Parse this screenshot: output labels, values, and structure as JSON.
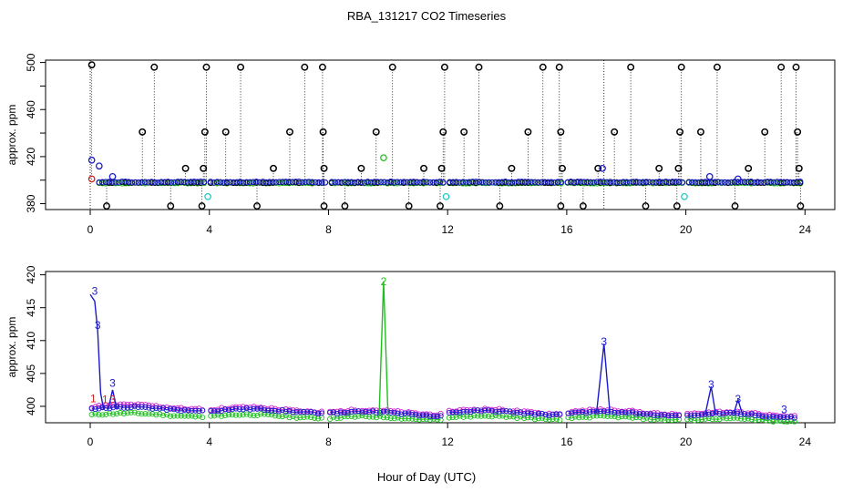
{
  "title": "RBA_131217  CO2 Timeseries",
  "xlabel": "Hour of Day (UTC)",
  "colors": {
    "black": "#000000",
    "red": "#d42020",
    "green": "#1fbf1f",
    "blue": "#1a1acc",
    "cyan": "#20c8c8",
    "magenta": "#cc20cc"
  },
  "chart_data": [
    {
      "type": "scatter",
      "name": "top-panel",
      "ylabel": "approx. ppm",
      "xlim": [
        -1.5,
        25
      ],
      "ylim": [
        375,
        502
      ],
      "xticks": [
        0,
        4,
        8,
        12,
        16,
        20,
        24
      ],
      "yticks": [
        380,
        420,
        460,
        500
      ],
      "yticks_minor": [
        400,
        440,
        480
      ],
      "gaps": [
        [
          3.9,
          4.0
        ],
        [
          7.9,
          8.1
        ],
        [
          11.9,
          12.0
        ],
        [
          15.9,
          16.0
        ],
        [
          19.9,
          20.0
        ]
      ],
      "baseline": 398,
      "spikes_high": [
        {
          "x": 0.05,
          "y": 498
        },
        {
          "x": 1.75,
          "y": 441
        },
        {
          "x": 2.15,
          "y": 496
        },
        {
          "x": 3.2,
          "y": 410
        },
        {
          "x": 3.8,
          "y": 410
        },
        {
          "x": 3.85,
          "y": 441
        },
        {
          "x": 3.9,
          "y": 496
        },
        {
          "x": 4.55,
          "y": 441
        },
        {
          "x": 5.05,
          "y": 496
        },
        {
          "x": 6.15,
          "y": 410
        },
        {
          "x": 6.7,
          "y": 441
        },
        {
          "x": 7.2,
          "y": 496
        },
        {
          "x": 7.8,
          "y": 496
        },
        {
          "x": 7.82,
          "y": 441
        },
        {
          "x": 7.85,
          "y": 410
        },
        {
          "x": 9.1,
          "y": 410
        },
        {
          "x": 9.6,
          "y": 441
        },
        {
          "x": 10.15,
          "y": 496
        },
        {
          "x": 11.2,
          "y": 410
        },
        {
          "x": 11.8,
          "y": 410
        },
        {
          "x": 11.85,
          "y": 441
        },
        {
          "x": 11.9,
          "y": 496
        },
        {
          "x": 12.55,
          "y": 441
        },
        {
          "x": 13.05,
          "y": 496
        },
        {
          "x": 14.15,
          "y": 410
        },
        {
          "x": 14.7,
          "y": 441
        },
        {
          "x": 15.2,
          "y": 496
        },
        {
          "x": 15.75,
          "y": 496
        },
        {
          "x": 15.8,
          "y": 441
        },
        {
          "x": 15.85,
          "y": 410
        },
        {
          "x": 17.05,
          "y": 410
        },
        {
          "x": 17.6,
          "y": 441
        },
        {
          "x": 18.15,
          "y": 496
        },
        {
          "x": 19.1,
          "y": 410
        },
        {
          "x": 19.75,
          "y": 410
        },
        {
          "x": 19.8,
          "y": 441
        },
        {
          "x": 19.85,
          "y": 496
        },
        {
          "x": 20.5,
          "y": 441
        },
        {
          "x": 21.05,
          "y": 496
        },
        {
          "x": 22.1,
          "y": 410
        },
        {
          "x": 22.65,
          "y": 441
        },
        {
          "x": 23.2,
          "y": 496
        },
        {
          "x": 23.7,
          "y": 496
        },
        {
          "x": 23.75,
          "y": 441
        },
        {
          "x": 23.8,
          "y": 410
        }
      ],
      "spikes_low": [
        {
          "x": 0.55,
          "y": 378
        },
        {
          "x": 2.7,
          "y": 378
        },
        {
          "x": 3.75,
          "y": 378
        },
        {
          "x": 5.6,
          "y": 378
        },
        {
          "x": 7.85,
          "y": 378
        },
        {
          "x": 8.55,
          "y": 378
        },
        {
          "x": 10.7,
          "y": 378
        },
        {
          "x": 11.75,
          "y": 378
        },
        {
          "x": 13.75,
          "y": 378
        },
        {
          "x": 15.8,
          "y": 378
        },
        {
          "x": 16.55,
          "y": 378
        },
        {
          "x": 18.65,
          "y": 378
        },
        {
          "x": 19.7,
          "y": 378
        },
        {
          "x": 21.65,
          "y": 378
        },
        {
          "x": 23.85,
          "y": 378
        }
      ],
      "outliers": [
        {
          "x": 0.05,
          "y": 417,
          "color": "blue"
        },
        {
          "x": 0.3,
          "y": 412,
          "color": "blue"
        },
        {
          "x": 0.75,
          "y": 403,
          "color": "blue"
        },
        {
          "x": 17.2,
          "y": 410,
          "color": "blue"
        },
        {
          "x": 20.8,
          "y": 403,
          "color": "blue"
        },
        {
          "x": 21.75,
          "y": 401,
          "color": "blue"
        },
        {
          "x": 9.85,
          "y": 419,
          "color": "green"
        },
        {
          "x": 0.05,
          "y": 401,
          "color": "red"
        },
        {
          "x": 3.95,
          "y": 386,
          "color": "cyan"
        },
        {
          "x": 11.95,
          "y": 386,
          "color": "cyan"
        },
        {
          "x": 19.95,
          "y": 386,
          "color": "cyan"
        }
      ]
    },
    {
      "type": "line",
      "name": "bottom-panel",
      "ylabel": "approx. ppm",
      "xlim": [
        -1.5,
        25
      ],
      "ylim": [
        397.5,
        420.5
      ],
      "xticks": [
        0,
        4,
        8,
        12,
        16,
        20,
        24
      ],
      "yticks": [
        400,
        405,
        410,
        415,
        420
      ],
      "labels": [
        {
          "x": 0.15,
          "y": 417.5,
          "text": "3",
          "color": "blue"
        },
        {
          "x": 0.25,
          "y": 412.3,
          "text": "3",
          "color": "blue"
        },
        {
          "x": 0.75,
          "y": 403.5,
          "text": "3",
          "color": "blue"
        },
        {
          "x": 0.1,
          "y": 401.2,
          "text": "1",
          "color": "red"
        },
        {
          "x": 0.5,
          "y": 401.0,
          "text": "1",
          "color": "red"
        },
        {
          "x": 0.75,
          "y": 401.0,
          "text": "3",
          "color": "red"
        },
        {
          "x": 9.85,
          "y": 419.0,
          "text": "2",
          "color": "green"
        },
        {
          "x": 17.25,
          "y": 409.8,
          "text": "3",
          "color": "blue"
        },
        {
          "x": 20.85,
          "y": 403.3,
          "text": "3",
          "color": "blue"
        },
        {
          "x": 21.75,
          "y": 401.1,
          "text": "3",
          "color": "blue"
        },
        {
          "x": 23.3,
          "y": 399.5,
          "text": "3",
          "color": "blue"
        }
      ],
      "spikes": [
        {
          "color": "blue",
          "points": [
            [
              0.0,
              417.0
            ],
            [
              0.15,
              416.0
            ],
            [
              0.25,
              411.5
            ],
            [
              0.35,
              402.0
            ],
            [
              0.45,
              399.5
            ]
          ]
        },
        {
          "color": "blue",
          "points": [
            [
              0.6,
              399.5
            ],
            [
              0.75,
              402.5
            ],
            [
              0.9,
              399.5
            ]
          ]
        },
        {
          "color": "green",
          "points": [
            [
              9.7,
              398.5
            ],
            [
              9.85,
              419.0
            ],
            [
              10.0,
              398.5
            ]
          ]
        },
        {
          "color": "blue",
          "points": [
            [
              17.0,
              399.0
            ],
            [
              17.25,
              409.5
            ],
            [
              17.45,
              399.0
            ]
          ]
        },
        {
          "color": "blue",
          "points": [
            [
              20.65,
              398.8
            ],
            [
              20.85,
              403.0
            ],
            [
              21.0,
              398.8
            ]
          ]
        },
        {
          "color": "blue",
          "points": [
            [
              21.6,
              398.8
            ],
            [
              21.75,
              401.0
            ],
            [
              21.9,
              398.8
            ]
          ]
        }
      ],
      "segments": [
        {
          "x0": 0.05,
          "x1": 3.85,
          "base_green": 398.7,
          "base_blue": 399.6,
          "base_red": 399.9
        },
        {
          "x0": 4.05,
          "x1": 7.85,
          "base_green": 398.5,
          "base_blue": 399.3,
          "base_red": 399.5
        },
        {
          "x0": 8.05,
          "x1": 11.85,
          "base_green": 398.2,
          "base_blue": 398.9,
          "base_red": 399.1
        },
        {
          "x0": 12.05,
          "x1": 15.85,
          "base_green": 398.3,
          "base_blue": 399.0,
          "base_red": 399.2
        },
        {
          "x0": 16.05,
          "x1": 19.85,
          "base_green": 398.2,
          "base_blue": 398.9,
          "base_red": 399.1
        },
        {
          "x0": 20.05,
          "x1": 23.75,
          "base_green": 397.9,
          "base_blue": 398.6,
          "base_red": 398.8
        }
      ]
    }
  ]
}
